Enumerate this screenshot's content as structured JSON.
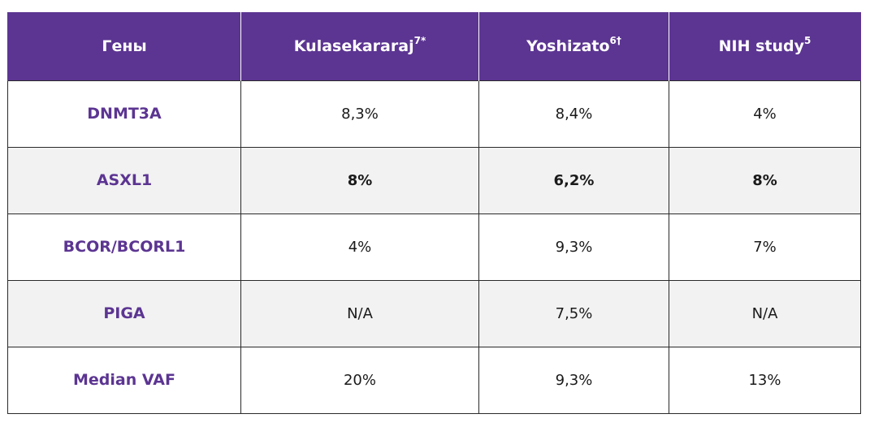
{
  "header": {
    "col0": "Гены",
    "col1": {
      "text": "Kulasekararaj",
      "sup": "7*"
    },
    "col2": {
      "text": "Yoshizato",
      "sup": "6†"
    },
    "col3": {
      "text": "NIH study",
      "sup": "5"
    }
  },
  "rows": [
    {
      "gene": "DNMT3A",
      "v1": "8,3%",
      "v2": "8,4%",
      "v3": "4%"
    },
    {
      "gene": "ASXL1",
      "v1": "8%",
      "v2": "6,2%",
      "v3": "8%"
    },
    {
      "gene": "BCOR/BCORL1",
      "v1": "4%",
      "v2": "9,3%",
      "v3": "7%"
    },
    {
      "gene": "PIGA",
      "v1": "N/A",
      "v2": "7,5%",
      "v3": "N/A"
    },
    {
      "gene": "Median VAF",
      "v1": "20%",
      "v2": "9,3%",
      "v3": "13%"
    }
  ],
  "colors": {
    "header_bg": "#5c3592",
    "gene_text": "#5c3592",
    "alt_row_bg": "#f2f2f2"
  }
}
